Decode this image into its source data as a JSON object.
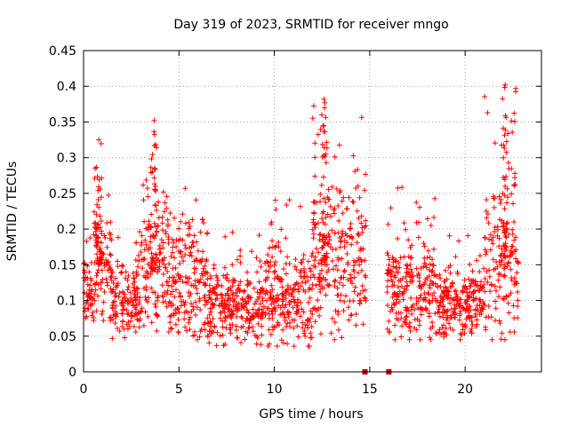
{
  "chart_data": {
    "type": "scatter",
    "title": "Day 319 of 2023, SRMTID for receiver mngo",
    "xlabel": "GPS time / hours",
    "ylabel": "SRMTID / TECUs",
    "xlim": [
      0,
      24
    ],
    "ylim": [
      0,
      0.45
    ],
    "xticks": [
      0,
      5,
      10,
      15,
      20
    ],
    "yticks": [
      0,
      0.05,
      0.1,
      0.15,
      0.2,
      0.25,
      0.3,
      0.35,
      0.4,
      0.45
    ],
    "xtick_labels": [
      "0",
      "5",
      "10",
      "15",
      "20"
    ],
    "ytick_labels": [
      "0",
      "0.05",
      "0.1",
      "0.15",
      "0.2",
      "0.25",
      "0.3",
      "0.35",
      "0.4",
      "0.45"
    ],
    "grid": true,
    "marker": "+",
    "color": "#ff0000",
    "gap_markers": [
      {
        "x": 14.75,
        "y": 0
      },
      {
        "x": 16.0,
        "y": 0
      }
    ],
    "data_gap_hours": [
      14.8,
      15.9
    ],
    "series": [
      {
        "name": "SRMTID",
        "description": "dense scatter of SRMTID values, approx. 0.04–0.40 TECU",
        "segments": [
          {
            "x_range": [
              0.0,
              0.5
            ],
            "typical": [
              0.06,
              0.2
            ]
          },
          {
            "x_range": [
              0.5,
              1.5
            ],
            "typical": [
              0.08,
              0.3
            ],
            "peak": {
              "x": 0.8,
              "y": 0.325
            }
          },
          {
            "x_range": [
              1.5,
              3.0
            ],
            "typical": [
              0.05,
              0.2
            ]
          },
          {
            "x_range": [
              3.0,
              4.5
            ],
            "typical": [
              0.05,
              0.34
            ],
            "peak": {
              "x": 3.7,
              "y": 0.352
            }
          },
          {
            "x_range": [
              4.5,
              6.5
            ],
            "typical": [
              0.05,
              0.3
            ]
          },
          {
            "x_range": [
              6.5,
              9.5
            ],
            "typical": [
              0.04,
              0.2
            ]
          },
          {
            "x_range": [
              9.5,
              12.0
            ],
            "typical": [
              0.04,
              0.25
            ]
          },
          {
            "x_range": [
              12.0,
              14.8
            ],
            "typical": [
              0.05,
              0.38
            ],
            "peak": {
              "x": 12.6,
              "y": 0.382
            }
          },
          {
            "x_range": [
              15.9,
              18.5
            ],
            "typical": [
              0.05,
              0.26
            ]
          },
          {
            "x_range": [
              18.5,
              21.0
            ],
            "typical": [
              0.05,
              0.2
            ]
          },
          {
            "x_range": [
              21.0,
              22.8
            ],
            "typical": [
              0.05,
              0.4
            ],
            "peak": {
              "x": 22.1,
              "y": 0.402
            }
          }
        ]
      }
    ]
  }
}
